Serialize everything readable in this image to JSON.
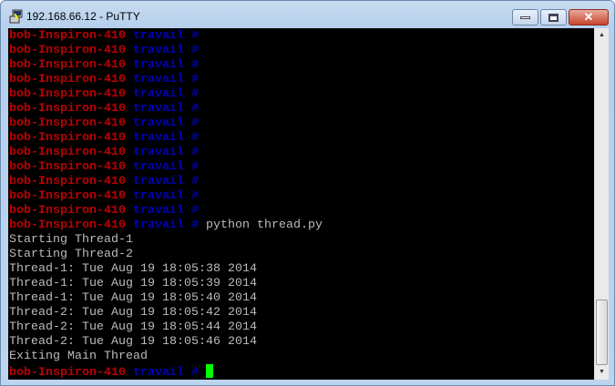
{
  "window": {
    "title": "192.168.66.12 - PuTTY",
    "icon": "putty-icon",
    "buttons": [
      "minimize",
      "maximize",
      "close"
    ]
  },
  "prompt": {
    "host": "bob-Inspiron-410",
    "dir": "travail",
    "symbol": "#"
  },
  "colors": {
    "host": "#bb0000",
    "dir": "#0000bb",
    "output": "#bbbbbb",
    "cursor": "#00ff00",
    "background": "#000000"
  },
  "lines": [
    {
      "type": "prompt",
      "cmd": ""
    },
    {
      "type": "prompt",
      "cmd": ""
    },
    {
      "type": "prompt",
      "cmd": ""
    },
    {
      "type": "prompt",
      "cmd": ""
    },
    {
      "type": "prompt",
      "cmd": ""
    },
    {
      "type": "prompt",
      "cmd": ""
    },
    {
      "type": "prompt",
      "cmd": ""
    },
    {
      "type": "prompt",
      "cmd": ""
    },
    {
      "type": "prompt",
      "cmd": ""
    },
    {
      "type": "prompt",
      "cmd": ""
    },
    {
      "type": "prompt",
      "cmd": ""
    },
    {
      "type": "prompt",
      "cmd": ""
    },
    {
      "type": "prompt",
      "cmd": ""
    },
    {
      "type": "prompt",
      "cmd": "python thread.py"
    },
    {
      "type": "out",
      "text": "Starting Thread-1"
    },
    {
      "type": "out",
      "text": "Starting Thread-2"
    },
    {
      "type": "out",
      "text": "Thread-1: Tue Aug 19 18:05:38 2014"
    },
    {
      "type": "out",
      "text": "Thread-1: Tue Aug 19 18:05:39 2014"
    },
    {
      "type": "out",
      "text": "Thread-1: Tue Aug 19 18:05:40 2014"
    },
    {
      "type": "out",
      "text": "Thread-2: Tue Aug 19 18:05:42 2014"
    },
    {
      "type": "out",
      "text": "Thread-2: Tue Aug 19 18:05:44 2014"
    },
    {
      "type": "out",
      "text": "Thread-2: Tue Aug 19 18:05:46 2014"
    },
    {
      "type": "out",
      "text": "Exiting Main Thread"
    },
    {
      "type": "prompt",
      "cmd": "",
      "cursor": true
    }
  ]
}
